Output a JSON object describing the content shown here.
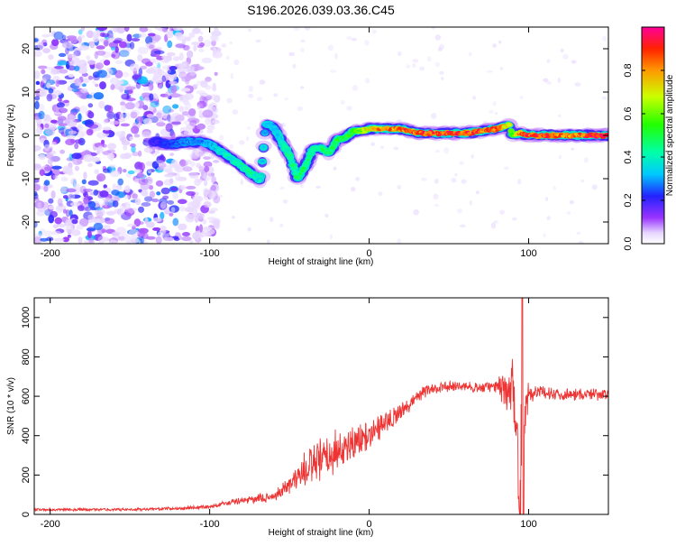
{
  "title": "S196.2026.039.03.36.C45",
  "chart_data": [
    {
      "type": "heatmap",
      "xlabel": "Height of straight line (km)",
      "ylabel": "Frequency (Hz)",
      "xlim": [
        -210,
        150
      ],
      "ylim": [
        -25,
        25
      ],
      "x_ticks": [
        -200,
        -100,
        0,
        100
      ],
      "y_ticks": [
        -20,
        -10,
        0,
        10,
        20
      ],
      "colorbar": {
        "label": "Normalized spectral amplitude",
        "range": [
          0,
          1
        ],
        "ticks": [
          "0.0",
          "0.2",
          "0.4",
          "0.6",
          "0.8"
        ],
        "tick_values": [
          0.0,
          0.2,
          0.4,
          0.6,
          0.8
        ]
      },
      "ridge": {
        "x": [
          -135,
          -125,
          -115,
          -105,
          -98,
          -90,
          -82,
          -75,
          -68,
          -65,
          -60,
          -55,
          -50,
          -45,
          -40,
          -35,
          -30,
          -25,
          -20,
          -15,
          -10,
          -5,
          0,
          10,
          20,
          30,
          40,
          50,
          60,
          70,
          80,
          88,
          90,
          95,
          100,
          110,
          120,
          130,
          140,
          150
        ],
        "y": [
          -1.5,
          -2,
          -1.5,
          -1.5,
          -2.5,
          -4.5,
          -6.5,
          -8.5,
          -10.5,
          2.5,
          2,
          -1.5,
          -4.5,
          -10,
          -7,
          -3,
          -3,
          -4,
          -1,
          -0.5,
          1,
          1,
          1.5,
          1.5,
          1.5,
          0.5,
          0.5,
          0.5,
          0.5,
          1,
          1.5,
          2.5,
          0,
          0.5,
          0,
          0,
          0,
          0,
          0,
          0
        ],
        "amplitude": [
          0.2,
          0.25,
          0.3,
          0.3,
          0.35,
          0.4,
          0.45,
          0.45,
          0.4,
          0.35,
          0.35,
          0.4,
          0.45,
          0.5,
          0.5,
          0.45,
          0.5,
          0.5,
          0.55,
          0.55,
          0.6,
          0.65,
          0.75,
          0.9,
          0.9,
          0.95,
          0.95,
          0.95,
          0.95,
          0.95,
          0.9,
          0.7,
          0.6,
          0.9,
          0.95,
          0.95,
          0.9,
          0.9,
          0.95,
          0.95
        ]
      },
      "noise_region_x": [
        -210,
        -120
      ]
    },
    {
      "type": "line",
      "xlabel": "Height of straight line (km)",
      "ylabel": "SNR (10 * v/v)",
      "xlim": [
        -210,
        150
      ],
      "ylim": [
        0,
        1100
      ],
      "x_ticks": [
        -200,
        -100,
        0,
        100
      ],
      "y_ticks": [
        0,
        200,
        400,
        600,
        800,
        1000
      ],
      "color": "#ee3333",
      "envelope": {
        "x": [
          -210,
          -150,
          -120,
          -100,
          -80,
          -60,
          -50,
          -40,
          -30,
          -20,
          -10,
          0,
          10,
          20,
          30,
          40,
          50,
          60,
          70,
          80,
          85,
          90,
          95,
          100,
          110,
          120,
          150
        ],
        "mean": [
          25,
          25,
          30,
          40,
          70,
          90,
          150,
          230,
          270,
          320,
          360,
          410,
          470,
          520,
          600,
          640,
          650,
          650,
          640,
          650,
          640,
          620,
          350,
          620,
          620,
          610,
          610
        ],
        "spread": [
          8,
          8,
          10,
          12,
          20,
          30,
          60,
          110,
          140,
          120,
          100,
          80,
          70,
          50,
          40,
          30,
          30,
          30,
          30,
          40,
          120,
          250,
          300,
          60,
          40,
          35,
          35
        ]
      }
    }
  ]
}
